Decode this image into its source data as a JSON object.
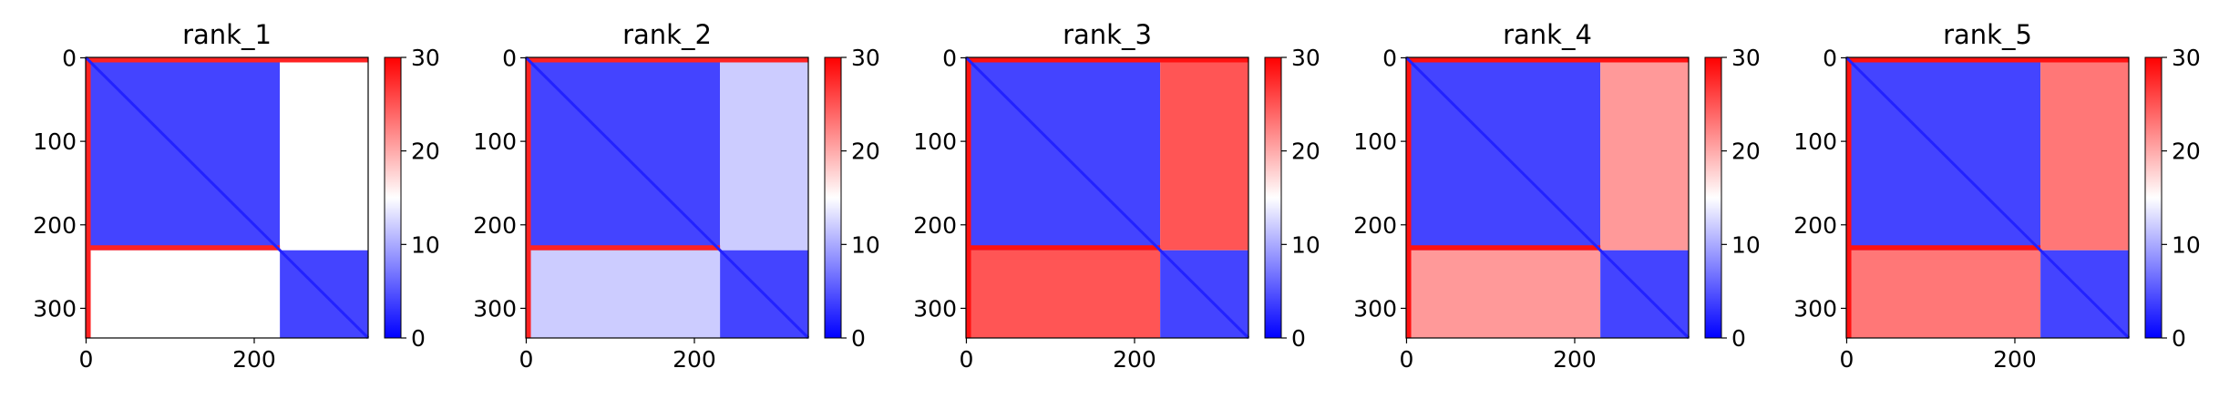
{
  "chart_data": [
    {
      "type": "heatmap",
      "title": "rank_1",
      "matrix_size": 336,
      "domain_break": 231,
      "xticks": [
        0,
        200
      ],
      "yticks": [
        0,
        100,
        200,
        300
      ],
      "colorbar": {
        "min": 0,
        "max": 30,
        "ticks": [
          0,
          10,
          20,
          30
        ],
        "colormap": "bwr"
      },
      "block_values": {
        "diagonal": 2,
        "within_domain_1": 4,
        "within_domain_2": 4,
        "inter_domain": 15,
        "domain_edge": 28
      }
    },
    {
      "type": "heatmap",
      "title": "rank_2",
      "matrix_size": 336,
      "domain_break": 231,
      "xticks": [
        0,
        200
      ],
      "yticks": [
        0,
        100,
        200,
        300
      ],
      "colorbar": {
        "min": 0,
        "max": 30,
        "ticks": [
          0,
          10,
          20,
          30
        ],
        "colormap": "bwr"
      },
      "block_values": {
        "diagonal": 2,
        "within_domain_1": 4,
        "within_domain_2": 4,
        "inter_domain": 12,
        "domain_edge": 28
      }
    },
    {
      "type": "heatmap",
      "title": "rank_3",
      "matrix_size": 336,
      "domain_break": 231,
      "xticks": [
        0,
        200
      ],
      "yticks": [
        0,
        100,
        200,
        300
      ],
      "colorbar": {
        "min": 0,
        "max": 30,
        "ticks": [
          0,
          10,
          20,
          30
        ],
        "colormap": "bwr"
      },
      "block_values": {
        "diagonal": 2,
        "within_domain_1": 4,
        "within_domain_2": 4,
        "inter_domain": 25,
        "domain_edge": 29
      }
    },
    {
      "type": "heatmap",
      "title": "rank_4",
      "matrix_size": 336,
      "domain_break": 231,
      "xticks": [
        0,
        200
      ],
      "yticks": [
        0,
        100,
        200,
        300
      ],
      "colorbar": {
        "min": 0,
        "max": 30,
        "ticks": [
          0,
          10,
          20,
          30
        ],
        "colormap": "bwr"
      },
      "block_values": {
        "diagonal": 2,
        "within_domain_1": 4,
        "within_domain_2": 4,
        "inter_domain": 21,
        "domain_edge": 29
      }
    },
    {
      "type": "heatmap",
      "title": "rank_5",
      "matrix_size": 336,
      "domain_break": 231,
      "xticks": [
        0,
        200
      ],
      "yticks": [
        0,
        100,
        200,
        300
      ],
      "colorbar": {
        "min": 0,
        "max": 30,
        "ticks": [
          0,
          10,
          20,
          30
        ],
        "colormap": "bwr"
      },
      "block_values": {
        "diagonal": 2,
        "within_domain_1": 4,
        "within_domain_2": 4,
        "inter_domain": 23,
        "domain_edge": 29
      }
    }
  ]
}
